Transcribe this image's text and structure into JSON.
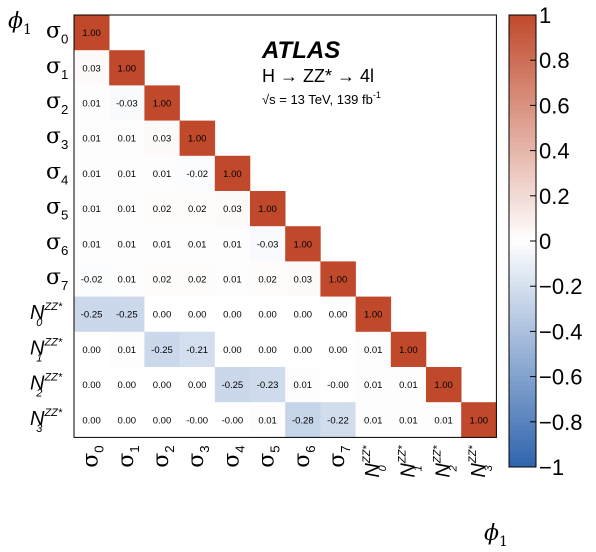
{
  "chart_data": {
    "type": "heatmap",
    "row_labels": [
      {
        "base": "σ",
        "sub": "0",
        "sup": ""
      },
      {
        "base": "σ",
        "sub": "1",
        "sup": ""
      },
      {
        "base": "σ",
        "sub": "2",
        "sup": ""
      },
      {
        "base": "σ",
        "sub": "3",
        "sup": ""
      },
      {
        "base": "σ",
        "sub": "4",
        "sup": ""
      },
      {
        "base": "σ",
        "sub": "5",
        "sup": ""
      },
      {
        "base": "σ",
        "sub": "6",
        "sup": ""
      },
      {
        "base": "σ",
        "sub": "7",
        "sup": ""
      },
      {
        "base": "N",
        "sub": "0",
        "sup": "ZZ*"
      },
      {
        "base": "N",
        "sub": "1",
        "sup": "ZZ*"
      },
      {
        "base": "N",
        "sub": "2",
        "sup": "ZZ*"
      },
      {
        "base": "N",
        "sub": "3",
        "sup": "ZZ*"
      }
    ],
    "matrix": [
      [
        "1.00"
      ],
      [
        "0.03",
        "1.00"
      ],
      [
        "0.01",
        "-0.03",
        "1.00"
      ],
      [
        "0.01",
        "0.01",
        "0.03",
        "1.00"
      ],
      [
        "0.01",
        "0.01",
        "0.01",
        "-0.02",
        "1.00"
      ],
      [
        "0.01",
        "0.01",
        "0.02",
        "0.02",
        "0.03",
        "1.00"
      ],
      [
        "0.01",
        "0.01",
        "0.01",
        "0.01",
        "0.01",
        "-0.03",
        "1.00"
      ],
      [
        "-0.02",
        "0.01",
        "0.02",
        "0.02",
        "0.01",
        "0.02",
        "0.03",
        "1.00"
      ],
      [
        "-0.25",
        "-0.25",
        "0.00",
        "0.00",
        "0.00",
        "0.00",
        "0.00",
        "0.00",
        "1.00"
      ],
      [
        "0.00",
        "0.01",
        "-0.25",
        "-0.21",
        "0.00",
        "0.00",
        "0.00",
        "0.00",
        "0.01",
        "1.00"
      ],
      [
        "0.00",
        "0.00",
        "0.00",
        "0.00",
        "-0.25",
        "-0.23",
        "0.01",
        "-0.00",
        "0.01",
        "0.01",
        "1.00"
      ],
      [
        "0.00",
        "0.00",
        "0.00",
        "-0.00",
        "-0.00",
        "0.01",
        "-0.28",
        "-0.22",
        "0.01",
        "0.01",
        "0.01",
        "1.00"
      ]
    ],
    "x_axis_title": "ϕ",
    "x_axis_title_sub": "1",
    "y_axis_title": "ϕ",
    "y_axis_title_sub": "1",
    "zlim": [
      -1,
      1
    ],
    "z_ticks": [
      "1",
      "0.8",
      "0.6",
      "0.4",
      "0.2",
      "0",
      "−0.2",
      "−0.4",
      "−0.6",
      "−0.8",
      "−1"
    ],
    "colors": {
      "positive_max": "#c0492b",
      "zero": "#ffffff",
      "negative_max": "#2f64ad"
    },
    "annotation": {
      "experiment": "ATLAS",
      "process": "H → ZZ* → 4l",
      "energy": "√s = 13 TeV, 139 fb",
      "energy_sup": "-1"
    }
  }
}
